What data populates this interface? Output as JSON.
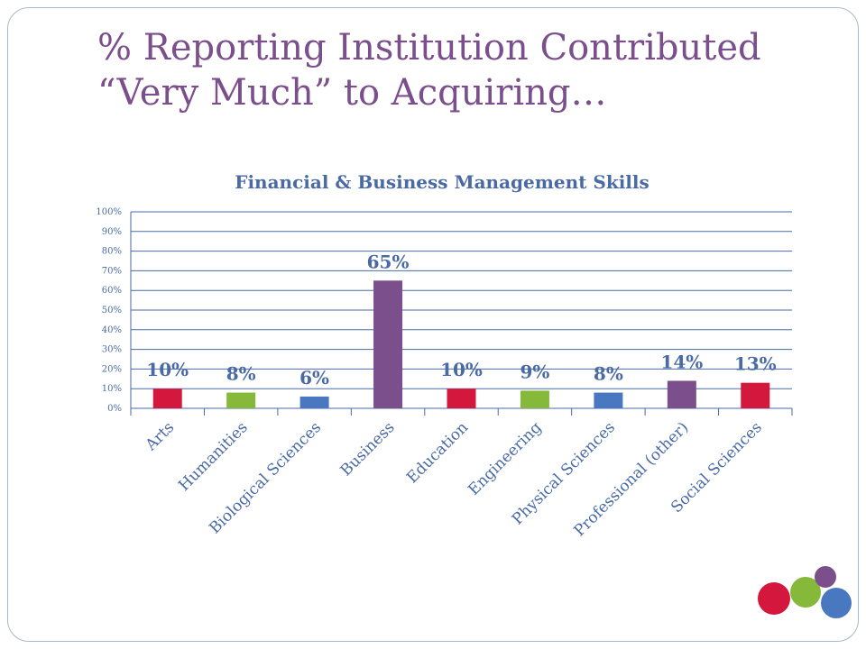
{
  "slide": {
    "title_line1": "% Reporting Institution Contributed",
    "title_line2": "“Very Much” to Acquiring…"
  },
  "colors": {
    "title": "#7a4f8c",
    "chart_title": "#4a6aa5",
    "label": "#4a6aa5",
    "red": "#d4173d",
    "green": "#86b83a",
    "blue": "#4a78c0",
    "purple": "#7a4f8c"
  },
  "chart_data": {
    "type": "bar",
    "title": "Financial & Business Management Skills",
    "categories": [
      "Arts",
      "Humanities",
      "Biological Sciences",
      "Business",
      "Education",
      "Engineering",
      "Physical Sciences",
      "Professional (other)",
      "Social Sciences"
    ],
    "values": [
      10,
      8,
      6,
      65,
      10,
      9,
      8,
      14,
      13
    ],
    "value_labels": [
      "10%",
      "8%",
      "6%",
      "65%",
      "10%",
      "9%",
      "8%",
      "14%",
      "13%"
    ],
    "bar_colors": [
      "#d4173d",
      "#86b83a",
      "#4a78c0",
      "#7a4f8c",
      "#d4173d",
      "#86b83a",
      "#4a78c0",
      "#7a4f8c",
      "#d4173d"
    ],
    "yticks": [
      "0%",
      "10%",
      "20%",
      "30%",
      "40%",
      "50%",
      "60%",
      "70%",
      "80%",
      "90%",
      "100%"
    ],
    "ylim": [
      0,
      100
    ],
    "grid": true,
    "legend": "none"
  }
}
